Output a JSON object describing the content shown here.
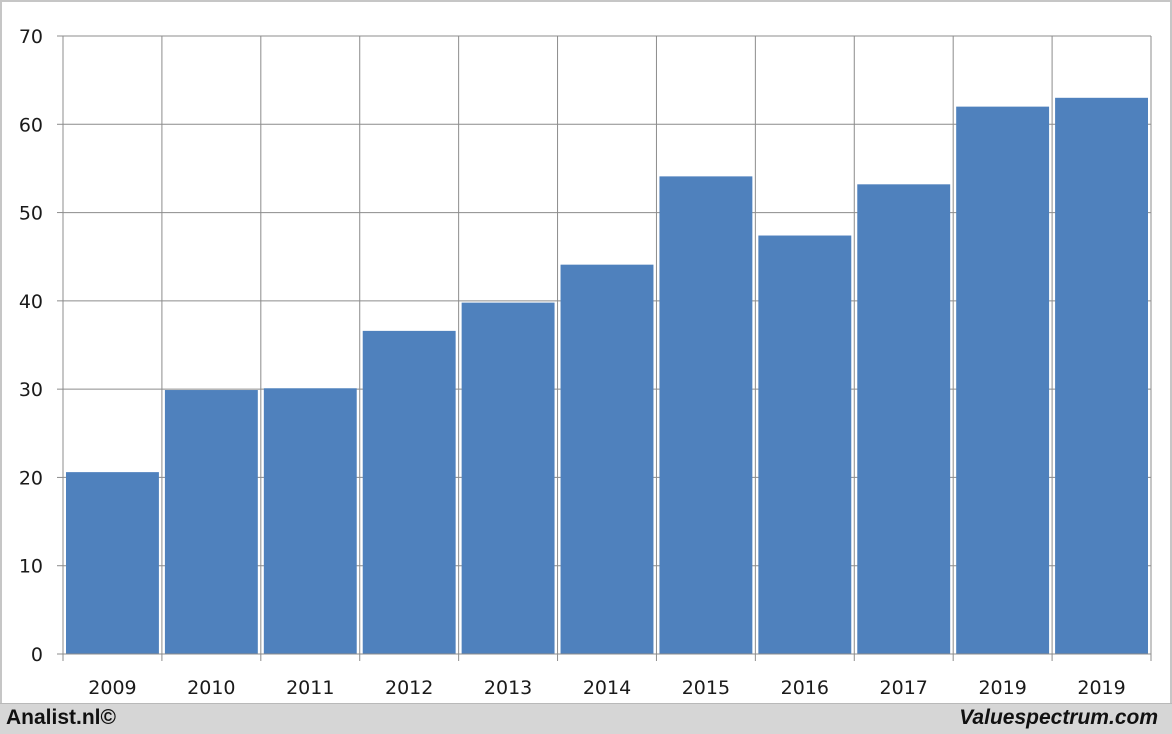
{
  "chart_data": {
    "type": "bar",
    "categories": [
      "2009",
      "2010",
      "2011",
      "2012",
      "2013",
      "2014",
      "2015",
      "2016",
      "2017",
      "2019",
      "2019"
    ],
    "values": [
      20.6,
      29.9,
      30.1,
      36.6,
      39.8,
      44.1,
      54.1,
      47.4,
      53.2,
      62.0,
      63.0
    ],
    "yticks": [
      "0",
      "10",
      "20",
      "30",
      "40",
      "50",
      "60",
      "70"
    ],
    "ylim": [
      0,
      70
    ],
    "title": "",
    "xlabel": "",
    "ylabel": "",
    "grid": true,
    "bar_color": "#4f81bd",
    "grid_color": "#8c8c8c"
  },
  "footer": {
    "left": "Analist.nl©",
    "right": "Valuespectrum.com"
  }
}
